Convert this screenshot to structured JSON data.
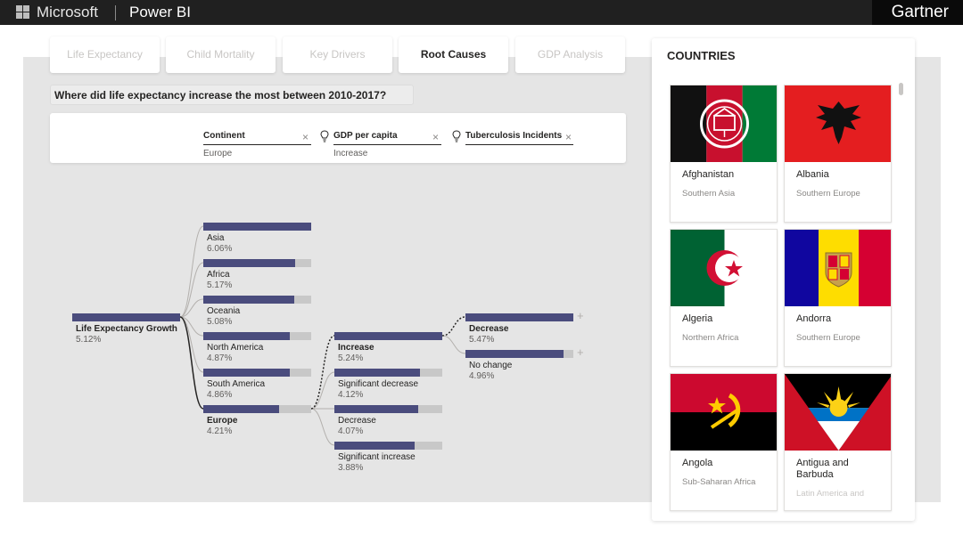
{
  "header": {
    "brand": "Microsoft",
    "app": "Power BI",
    "partner": "Gartner"
  },
  "tabs": [
    {
      "label": "Life Expectancy",
      "active": false
    },
    {
      "label": "Child Mortality",
      "active": false
    },
    {
      "label": "Key Drivers",
      "active": false
    },
    {
      "label": "Root Causes",
      "active": true
    },
    {
      "label": "GDP Analysis",
      "active": false
    }
  ],
  "question": "Where did life expectancy increase the most between 2010-2017?",
  "filters": [
    {
      "name": "Continent",
      "value": "Europe",
      "icon": "close-icon"
    },
    {
      "name": "GDP per capita",
      "value": "Increase",
      "icon": "lightbulb-icon"
    },
    {
      "name": "Tuberculosis Incidents",
      "value": "",
      "icon": "lightbulb-icon"
    }
  ],
  "tree": {
    "root": {
      "label": "Life Expectancy Growth",
      "value": "5.12%",
      "fill": 1.0
    },
    "level1": [
      {
        "label": "Asia",
        "value": "6.06%",
        "fill": 1.0
      },
      {
        "label": "Africa",
        "value": "5.17%",
        "fill": 0.85
      },
      {
        "label": "Oceania",
        "value": "5.08%",
        "fill": 0.84
      },
      {
        "label": "North America",
        "value": "4.87%",
        "fill": 0.8
      },
      {
        "label": "South America",
        "value": "4.86%",
        "fill": 0.8
      },
      {
        "label": "Europe",
        "value": "4.21%",
        "fill": 0.7,
        "selected": true
      }
    ],
    "level2": [
      {
        "label": "Increase",
        "value": "5.24%",
        "fill": 1.0,
        "selected": true
      },
      {
        "label": "Significant decrease",
        "value": "4.12%",
        "fill": 0.79
      },
      {
        "label": "Decrease",
        "value": "4.07%",
        "fill": 0.78
      },
      {
        "label": "Significant increase",
        "value": "3.88%",
        "fill": 0.74
      }
    ],
    "level3": [
      {
        "label": "Decrease",
        "value": "5.47%",
        "fill": 1.0,
        "selected": true
      },
      {
        "label": "No change",
        "value": "4.96%",
        "fill": 0.91
      }
    ]
  },
  "countries": {
    "title": "COUNTRIES",
    "items": [
      {
        "name": "Afghanistan",
        "region": "Southern Asia"
      },
      {
        "name": "Albania",
        "region": "Southern Europe"
      },
      {
        "name": "Algeria",
        "region": "Northern Africa"
      },
      {
        "name": "Andorra",
        "region": "Southern Europe"
      },
      {
        "name": "Angola",
        "region": "Sub-Saharan Africa"
      },
      {
        "name": "Antigua and Barbuda",
        "region": "Latin America and"
      }
    ]
  },
  "colors": {
    "bar_fill": "#4a4c7d",
    "bar_track": "#c8c8c8",
    "topbar": "#202020",
    "canvas": "#e5e5e5"
  }
}
